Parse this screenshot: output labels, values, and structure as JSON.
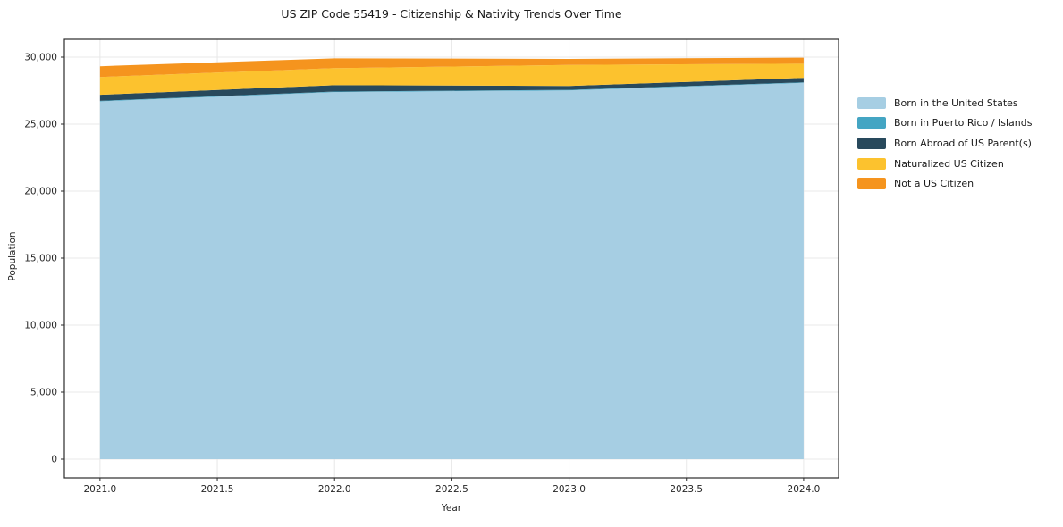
{
  "title": "US ZIP Code 55419 - Citizenship & Nativity Trends Over Time",
  "chart_data": {
    "type": "area",
    "stacked": true,
    "title": "US ZIP Code 55419 - Citizenship & Nativity Trends Over Time",
    "xlabel": "Year",
    "ylabel": "Population",
    "x": [
      2021,
      2022,
      2023,
      2024
    ],
    "series": [
      {
        "name": "Born in the United States",
        "color": "#a6cee3",
        "values": [
          26700,
          27390,
          27520,
          28080
        ]
      },
      {
        "name": "Born in Puerto Rico / Islands",
        "color": "#44a5c3",
        "values": [
          40,
          40,
          40,
          40
        ]
      },
      {
        "name": "Born Abroad of US Parent(s)",
        "color": "#28495c",
        "values": [
          450,
          480,
          290,
          330
        ]
      },
      {
        "name": "Naturalized US Citizen",
        "color": "#fcc22e",
        "values": [
          1330,
          1270,
          1570,
          1060
        ]
      },
      {
        "name": "Not a US Citizen",
        "color": "#f5941e",
        "values": [
          800,
          730,
          450,
          450
        ]
      }
    ],
    "stack_totals": [
      29320,
      29910,
      29870,
      29960
    ],
    "xticks": {
      "values": [
        2021,
        2021.5,
        2022,
        2022.5,
        2023,
        2023.5,
        2024
      ],
      "labels": [
        "2021.0",
        "2021.5",
        "2022.0",
        "2022.5",
        "2023.0",
        "2023.5",
        "2024.0"
      ]
    },
    "yticks": {
      "values": [
        0,
        5000,
        10000,
        15000,
        20000,
        25000,
        30000
      ],
      "labels": [
        "0",
        "5,000",
        "10,000",
        "15,000",
        "20,000",
        "25,000",
        "30,000"
      ]
    },
    "xlim": [
      2020.848,
      2024.149
    ],
    "ylim": [
      -1400,
      31333
    ],
    "grid": true,
    "legend_position": "right"
  }
}
